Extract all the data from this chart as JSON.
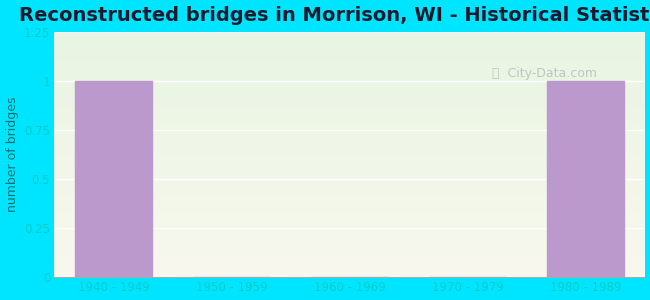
{
  "title": "Reconstructed bridges in Morrison, WI - Historical Statistics",
  "categories": [
    "1940 - 1949",
    "1950 - 1959",
    "1960 - 1969",
    "1970 - 1979",
    "1980 - 1989"
  ],
  "values": [
    1,
    0,
    0,
    0,
    1
  ],
  "bar_color": "#bb99cc",
  "bar_edge_color": "#bb99cc",
  "ylabel": "number of bridges",
  "ylim": [
    0,
    1.25
  ],
  "yticks": [
    0,
    0.25,
    0.5,
    0.75,
    1.0,
    1.25
  ],
  "background_color": "#00e5ff",
  "plot_bg_color_top": "#e8f5e2",
  "plot_bg_color_bottom": "#f8f8ee",
  "title_fontsize": 14,
  "title_color": "#1a1a2e",
  "ylabel_color": "#007070",
  "tick_color": "#00cccc",
  "grid_color": "#ffffff",
  "watermark_text": "City-Data.com",
  "watermark_color": "#bbbbbb",
  "bar_width": 0.65
}
